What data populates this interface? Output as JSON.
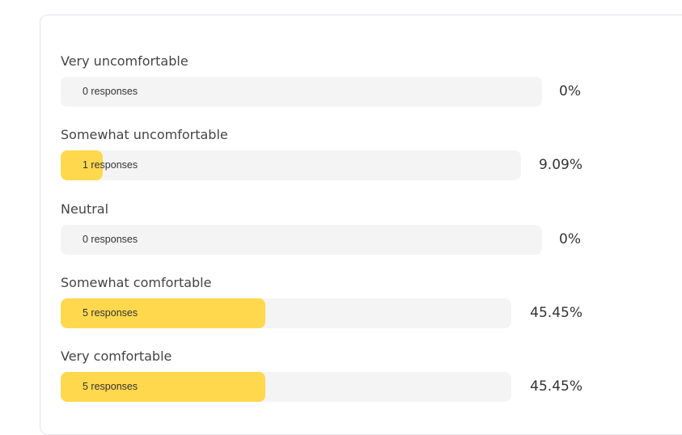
{
  "options": [
    {
      "label": "Very uncomfortable",
      "responses": "0 responses",
      "percent": "0%",
      "fraction": 0.0
    },
    {
      "label": "Somewhat uncomfortable",
      "responses": "1 responses",
      "percent": "9.09%",
      "fraction": 0.0909
    },
    {
      "label": "Neutral",
      "responses": "0 responses",
      "percent": "0%",
      "fraction": 0.0
    },
    {
      "label": "Somewhat comfortable",
      "responses": "5 responses",
      "percent": "45.45%",
      "fraction": 0.4545
    },
    {
      "label": "Very comfortable",
      "responses": "5 responses",
      "percent": "45.45%",
      "fraction": 0.4545
    }
  ],
  "colors": {
    "fill": "#ffd84d",
    "track": "#f4f4f4"
  }
}
